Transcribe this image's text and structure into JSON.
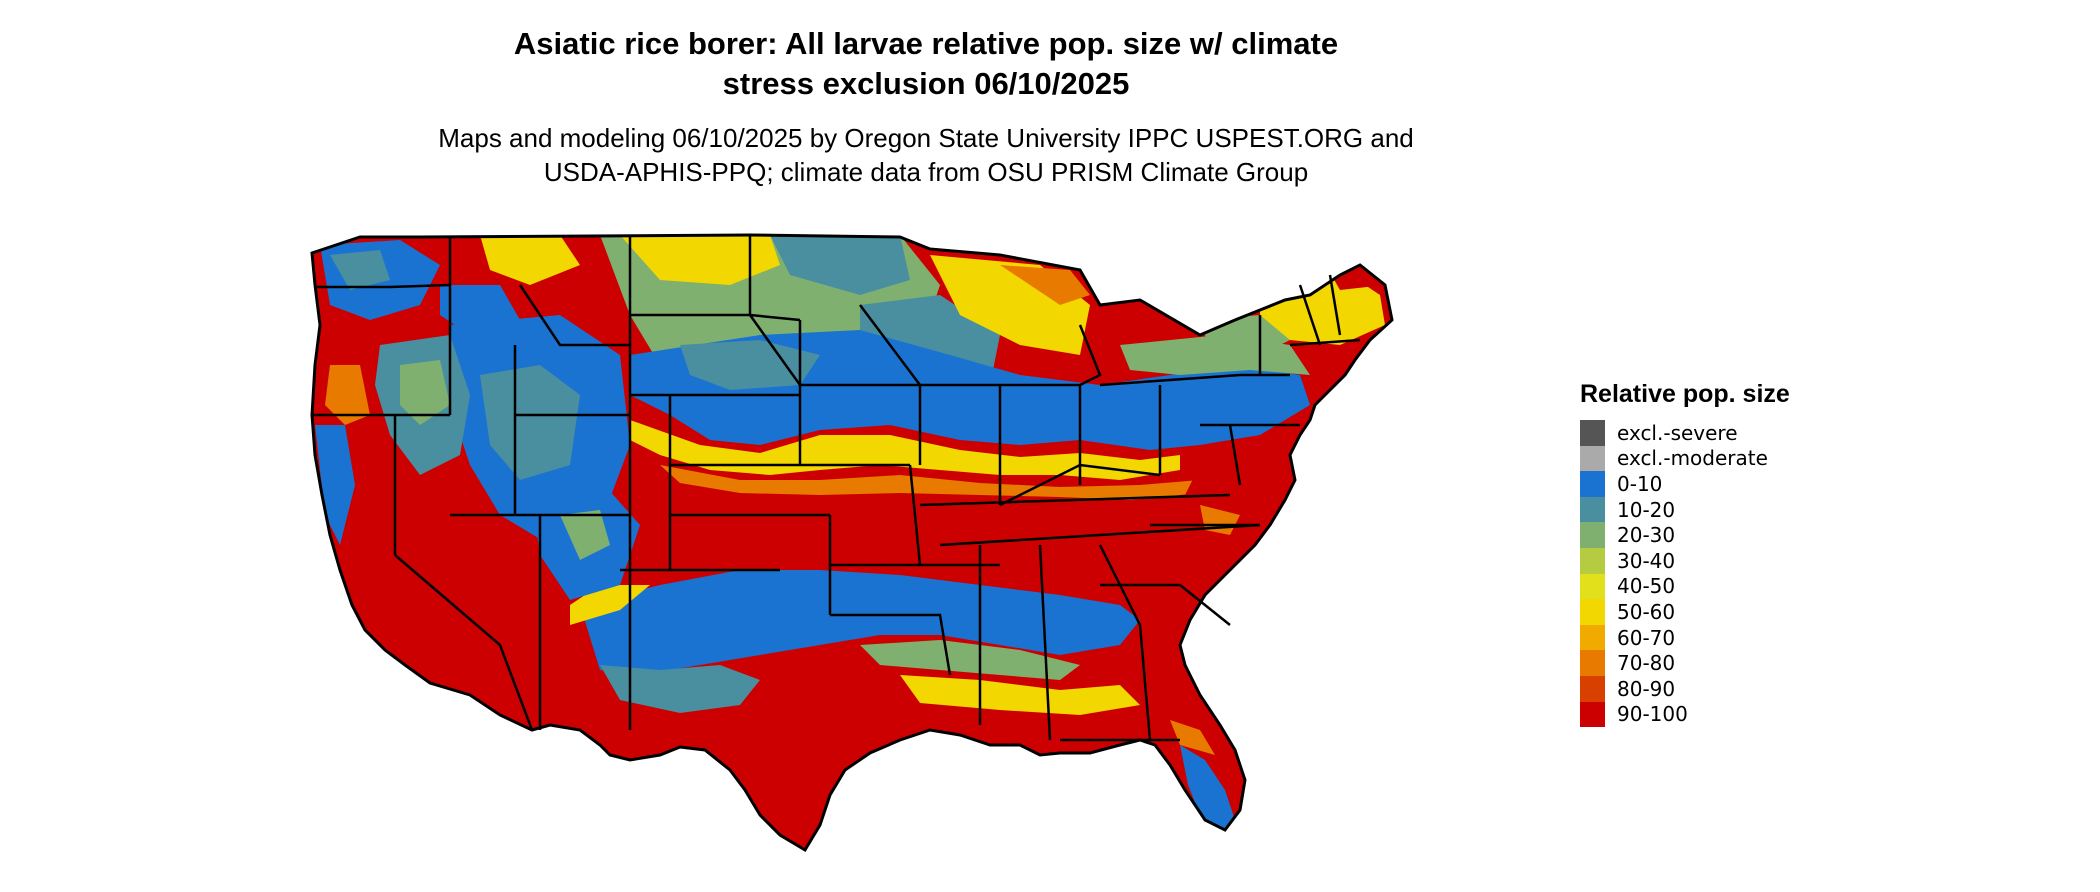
{
  "title_line1": "Asiatic rice borer: All larvae relative pop. size w/ climate",
  "title_line2": "stress exclusion 06/10/2025",
  "subtitle_line1": "Maps and modeling 06/10/2025 by Oregon State University IPPC USPEST.ORG and",
  "subtitle_line2": "USDA-APHIS-PPQ; climate data from OSU PRISM Climate Group",
  "legend": {
    "title": "Relative pop. size",
    "items": [
      {
        "label": "excl.-severe",
        "color": "#555555"
      },
      {
        "label": "excl.-moderate",
        "color": "#aaaaaa"
      },
      {
        "label": "0-10",
        "color": "#1a73d0"
      },
      {
        "label": "10-20",
        "color": "#4a8fa0"
      },
      {
        "label": "20-30",
        "color": "#80b070"
      },
      {
        "label": "30-40",
        "color": "#b5cc40"
      },
      {
        "label": "40-50",
        "color": "#e2e01a"
      },
      {
        "label": "50-60",
        "color": "#f2d800"
      },
      {
        "label": "60-70",
        "color": "#f0aa00"
      },
      {
        "label": "70-80",
        "color": "#e87a00"
      },
      {
        "label": "80-90",
        "color": "#d84000"
      },
      {
        "label": "90-100",
        "color": "#cc0000"
      }
    ]
  }
}
